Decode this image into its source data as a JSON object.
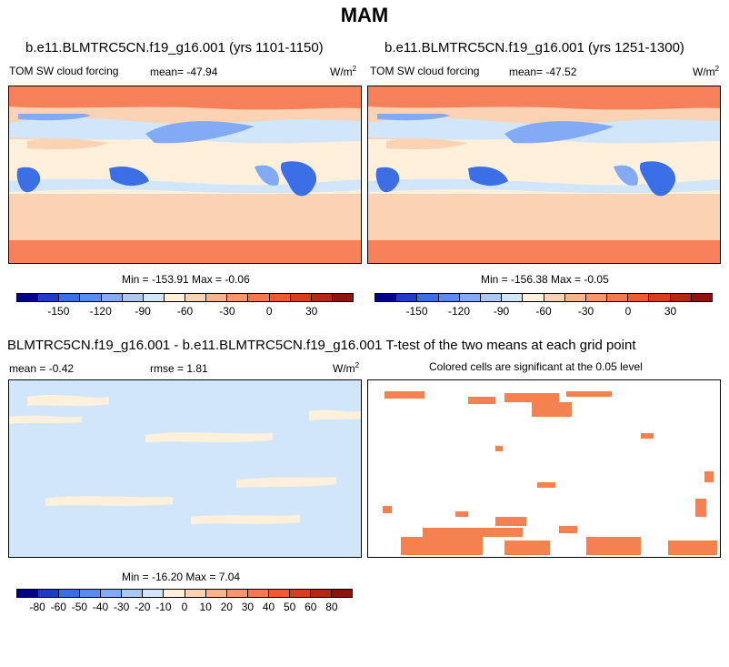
{
  "title": "MAM",
  "panels": {
    "top_left": {
      "title": "b.e11.BLMTRC5CN.f19_g16.001 (yrs 1101-1150)",
      "variable": "TOM SW cloud forcing",
      "mean": "mean= -47.94",
      "units": "W/m",
      "units_sup": "2",
      "minmax": "Min = -153.91 Max =  -0.06"
    },
    "top_right": {
      "title": "b.e11.BLMTRC5CN.f19_g16.001 (yrs 1251-1300)",
      "variable": "TOM SW cloud forcing",
      "mean": "mean= -47.52",
      "units": "W/m",
      "units_sup": "2",
      "minmax": "Min = -156.38 Max =  -0.05"
    },
    "bottom_left": {
      "mean": "mean =  -0.42",
      "rmse": "rmse =   1.81",
      "units": "W/m",
      "units_sup": "2",
      "minmax": "Min = -16.20 Max =   7.04"
    },
    "bottom_right": {
      "subtitle": "Colored cells are significant at the 0.05 level"
    }
  },
  "diff_title": "BLMTRC5CN.f19_g16.001 - b.e11.BLMTRC5CN.f19_g16.001 T-test of the two means at each grid point",
  "colorbar_top": {
    "colors": [
      "#00008b",
      "#1e3cc8",
      "#3c6ee6",
      "#5a8cf0",
      "#82aaf5",
      "#aac8f5",
      "#d2e6fa",
      "#fff0dc",
      "#fad2b4",
      "#f5b48c",
      "#f5966e",
      "#f57850",
      "#f05a32",
      "#dc3c1e",
      "#b42814",
      "#8c140a"
    ],
    "labels": [
      "-150",
      "-120",
      "-90",
      "-60",
      "-30",
      "0",
      "30"
    ]
  },
  "colorbar_bottom": {
    "colors": [
      "#00008b",
      "#1e3cc8",
      "#3c6ee6",
      "#5a8cf0",
      "#82aaf5",
      "#aac8f5",
      "#d2e6fa",
      "#fff0dc",
      "#fad2b4",
      "#f5b48c",
      "#f5966e",
      "#f57850",
      "#f05a32",
      "#dc3c1e",
      "#b42814",
      "#8c140a"
    ],
    "labels": [
      "-80",
      "-60",
      "-50",
      "-40",
      "-30",
      "-20",
      "-10",
      "0",
      "10",
      "20",
      "30",
      "40",
      "50",
      "60",
      "80"
    ]
  },
  "map_colors": {
    "orange": "#f5805a",
    "light_orange": "#fad2b4",
    "peach": "#fff0dc",
    "light_blue": "#d2e6fa",
    "mid_blue": "#82aaf5",
    "blue": "#3c6ee6",
    "sig_orange": "#f58050"
  }
}
